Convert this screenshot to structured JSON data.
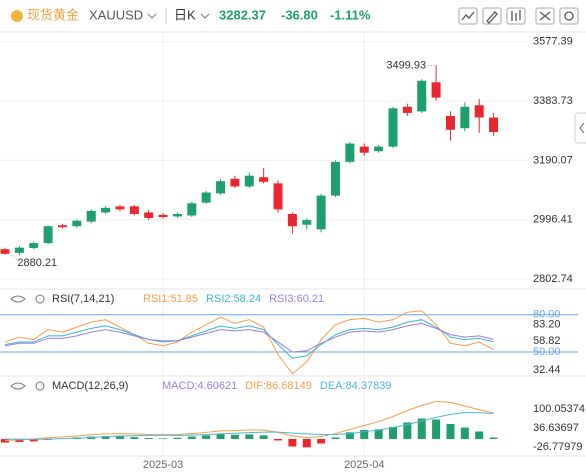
{
  "header": {
    "name": "现货黄金",
    "symbol": "XAUUSD",
    "period": "日K",
    "price": "3282.37",
    "change": "-36.80",
    "change_pct": "-1.11%"
  },
  "chart_data": [
    {
      "type": "candlestick",
      "categories": [
        null,
        null,
        null,
        null,
        null,
        null,
        null,
        null,
        null,
        null,
        null,
        "2025-03",
        null,
        null,
        null,
        null,
        null,
        null,
        null,
        null,
        null,
        null,
        null,
        null,
        null,
        "2025-04",
        null,
        null,
        null,
        null,
        null,
        null,
        null,
        null,
        null
      ],
      "open": [
        2900,
        2888,
        2904,
        2920,
        2978,
        2975,
        2990,
        3020,
        3040,
        3040,
        3020,
        3012,
        3007,
        3010,
        3052,
        3082,
        3130,
        3105,
        3135,
        3115,
        3015,
        2980,
        2965,
        3075,
        3185,
        3235,
        3220,
        3235,
        3365,
        3350,
        3445,
        3335,
        3295,
        3370,
        3330
      ],
      "close": [
        2885,
        2905,
        2920,
        2975,
        2972,
        2993,
        3025,
        3035,
        3030,
        3015,
        3002,
        3005,
        3015,
        3050,
        3085,
        3122,
        3105,
        3140,
        3120,
        3030,
        2975,
        2995,
        3075,
        3185,
        3245,
        3215,
        3235,
        3360,
        3345,
        3450,
        3395,
        3290,
        3365,
        3330,
        3282.37
      ],
      "high": [
        2905,
        2910,
        2925,
        2978,
        2983,
        2996,
        3030,
        3040,
        3045,
        3045,
        3028,
        3018,
        3020,
        3055,
        3090,
        3128,
        3140,
        3150,
        3165,
        3125,
        3020,
        3000,
        3080,
        3190,
        3250,
        3245,
        3240,
        3365,
        3375,
        3455,
        3499.93,
        3350,
        3380,
        3390,
        3345
      ],
      "low": [
        2882,
        2880.21,
        2900,
        2916,
        2968,
        2970,
        2985,
        3015,
        3025,
        3010,
        2995,
        3000,
        3002,
        3005,
        3048,
        3078,
        3100,
        3100,
        3115,
        3020,
        2950,
        2965,
        2955,
        3070,
        3180,
        3205,
        3215,
        3230,
        3335,
        3345,
        3385,
        3255,
        3285,
        3280,
        3270
      ],
      "up_color": "#1f9e6e",
      "down_color": "#e8282e",
      "ylim": [
        2770,
        3606
      ],
      "yticks": [
        3577.39,
        3383.73,
        3190.07,
        2996.41,
        2802.74
      ],
      "grid": true,
      "annotations": [
        3499.93,
        2880.21
      ]
    },
    {
      "type": "line",
      "title": "RSI(7,14,21)",
      "series": [
        {
          "name": "RSI1:51.85",
          "color": "#f0a04b",
          "values": [
            58,
            62,
            60,
            68,
            66,
            70,
            74,
            76,
            70,
            64,
            57,
            55,
            58,
            66,
            72,
            78,
            73,
            76,
            70,
            48,
            32.44,
            42,
            60,
            72,
            76,
            77,
            74,
            76,
            82,
            83.2,
            72,
            57,
            55,
            58,
            51.85
          ]
        },
        {
          "name": "RSI2:58.24",
          "color": "#3ab5c8",
          "values": [
            56,
            58,
            58,
            63,
            63,
            66,
            69,
            71,
            68,
            64,
            60,
            58,
            59,
            63,
            67,
            71,
            69,
            71,
            68,
            56,
            45,
            47,
            56,
            64,
            68,
            69,
            68,
            70,
            74,
            76,
            70,
            62,
            60,
            61,
            58.24
          ]
        },
        {
          "name": "RSI3:60.21",
          "color": "#9a7fd8",
          "values": [
            55,
            57,
            57,
            61,
            61,
            63,
            66,
            68,
            66,
            63,
            60,
            59,
            59,
            62,
            65,
            68,
            67,
            68,
            66,
            58,
            50,
            51,
            57,
            62,
            66,
            67,
            66,
            68,
            71,
            73,
            69,
            64,
            62,
            63,
            60.21
          ]
        }
      ],
      "ylim": [
        31.5,
        87
      ],
      "ref_lines": [
        {
          "value": 80,
          "label": "80.00"
        },
        {
          "value": 50,
          "label": "50.00"
        }
      ],
      "ref_color": "#6aa5dc",
      "yticks": [
        {
          "value": 83.2,
          "label": "83.20"
        },
        58.82,
        32.44
      ]
    },
    {
      "type": "macd",
      "title": "MACD(12,26,9)",
      "series": [
        {
          "name": "MACD:4.60621",
          "type": "bar",
          "color": "#9a7fd8",
          "up_color": "#1f9e6e",
          "down_color": "#e8282e",
          "values": [
            -12,
            -10,
            -8,
            -3,
            2,
            5,
            8,
            10,
            9,
            6,
            3,
            2,
            4,
            8,
            12,
            16,
            14,
            15,
            12,
            -5,
            -25,
            -28,
            -15,
            5,
            22,
            30,
            32,
            40,
            55,
            68,
            65,
            50,
            38,
            25,
            4.60621
          ]
        },
        {
          "name": "DIF:86.68149",
          "type": "line",
          "color": "#f0a04b",
          "values": [
            -5,
            -3,
            0,
            4,
            7,
            10,
            14,
            17,
            18,
            17,
            15,
            14,
            15,
            18,
            22,
            27,
            28,
            30,
            30,
            22,
            10,
            5,
            8,
            18,
            32,
            45,
            58,
            75,
            95,
            112,
            125,
            122,
            110,
            98,
            86.68149
          ]
        },
        {
          "name": "DEA:84.37839",
          "type": "line",
          "color": "#4fb7d6",
          "values": [
            0,
            -1,
            -1,
            0,
            1,
            3,
            5,
            8,
            10,
            11,
            12,
            12,
            12,
            13,
            15,
            17,
            19,
            21,
            23,
            23,
            20,
            17,
            15,
            15,
            18,
            24,
            30,
            38,
            48,
            60,
            72,
            82,
            88,
            88,
            84.37839
          ]
        }
      ],
      "ylim": [
        -53.5,
        140
      ],
      "yticks": [
        100.05374,
        36.63697,
        -26.77979
      ]
    }
  ]
}
